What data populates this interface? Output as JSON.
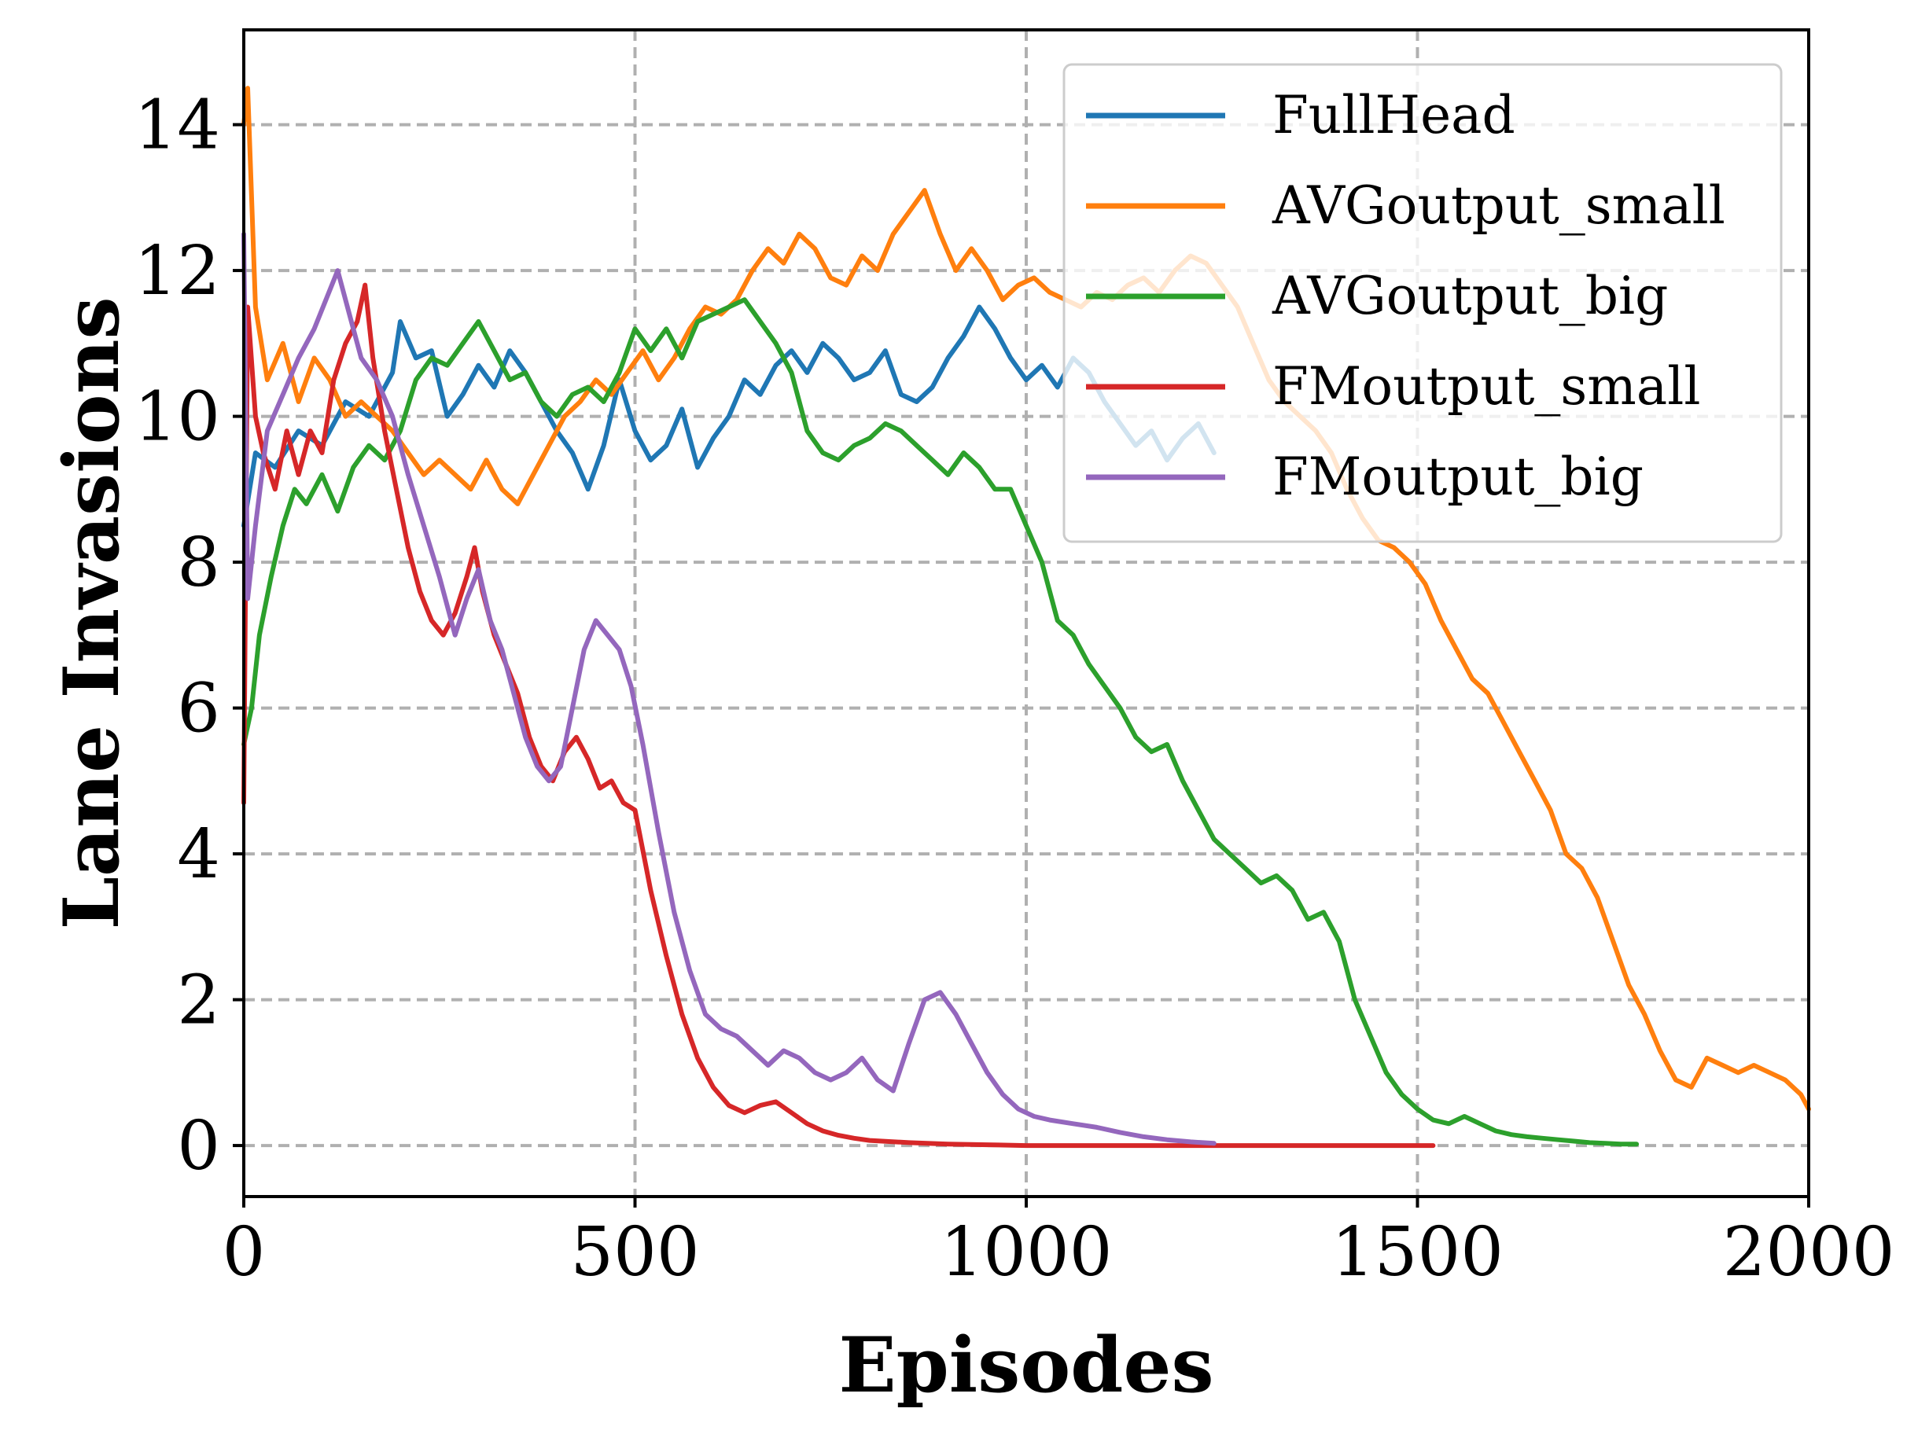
{
  "chart_data": {
    "type": "line",
    "xlabel": "Episodes",
    "ylabel": "Lane Invasions",
    "xlim": [
      0,
      2000
    ],
    "ylim": [
      -0.7,
      15.3
    ],
    "xticks": [
      0,
      500,
      1000,
      1500,
      2000
    ],
    "xtick_labels": [
      "0",
      "500",
      "1000",
      "1500",
      "2000"
    ],
    "yticks": [
      0,
      2,
      4,
      6,
      8,
      10,
      12,
      14
    ],
    "ytick_labels": [
      "0",
      "2",
      "4",
      "6",
      "8",
      "10",
      "12",
      "14"
    ],
    "grid": true,
    "legend_position": "top-right",
    "series": [
      {
        "name": "FullHead",
        "color": "#1f77b4",
        "x": [
          0,
          15,
          40,
          70,
          100,
          130,
          160,
          190,
          200,
          220,
          240,
          260,
          280,
          300,
          320,
          340,
          360,
          380,
          400,
          420,
          440,
          460,
          480,
          500,
          520,
          540,
          560,
          580,
          600,
          620,
          640,
          660,
          680,
          700,
          720,
          740,
          760,
          780,
          800,
          820,
          840,
          860,
          880,
          900,
          920,
          940,
          960,
          980,
          1000,
          1020,
          1040,
          1060,
          1080,
          1100,
          1120,
          1140,
          1160,
          1180,
          1200,
          1220,
          1240
        ],
        "y": [
          8.5,
          9.5,
          9.3,
          9.8,
          9.6,
          10.2,
          10.0,
          10.6,
          11.3,
          10.8,
          10.9,
          10.0,
          10.3,
          10.7,
          10.4,
          10.9,
          10.6,
          10.2,
          9.8,
          9.5,
          9.0,
          9.6,
          10.5,
          9.8,
          9.4,
          9.6,
          10.1,
          9.3,
          9.7,
          10.0,
          10.5,
          10.3,
          10.7,
          10.9,
          10.6,
          11.0,
          10.8,
          10.5,
          10.6,
          10.9,
          10.3,
          10.2,
          10.4,
          10.8,
          11.1,
          11.5,
          11.2,
          10.8,
          10.5,
          10.7,
          10.4,
          10.8,
          10.6,
          10.2,
          9.9,
          9.6,
          9.8,
          9.4,
          9.7,
          9.9,
          9.5
        ]
      },
      {
        "name": "AVGoutput_small",
        "color": "#ff7f0e",
        "x": [
          0,
          5,
          15,
          30,
          50,
          70,
          90,
          110,
          130,
          150,
          170,
          190,
          210,
          230,
          250,
          270,
          290,
          310,
          330,
          350,
          370,
          390,
          410,
          430,
          450,
          470,
          490,
          510,
          530,
          550,
          570,
          590,
          610,
          630,
          650,
          670,
          690,
          710,
          730,
          750,
          770,
          790,
          810,
          830,
          850,
          870,
          890,
          910,
          930,
          950,
          970,
          990,
          1010,
          1030,
          1050,
          1070,
          1090,
          1110,
          1130,
          1150,
          1170,
          1190,
          1210,
          1230,
          1250,
          1270,
          1290,
          1310,
          1330,
          1350,
          1370,
          1390,
          1410,
          1430,
          1450,
          1470,
          1490,
          1510,
          1530,
          1550,
          1570,
          1590,
          1610,
          1630,
          1650,
          1670,
          1690,
          1710,
          1730,
          1750,
          1770,
          1790,
          1810,
          1830,
          1850,
          1870,
          1890,
          1910,
          1930,
          1950,
          1970,
          1990,
          2000
        ],
        "y": [
          14.0,
          14.5,
          11.5,
          10.5,
          11.0,
          10.2,
          10.8,
          10.5,
          10.0,
          10.2,
          10.0,
          9.8,
          9.5,
          9.2,
          9.4,
          9.2,
          9.0,
          9.4,
          9.0,
          8.8,
          9.2,
          9.6,
          10.0,
          10.2,
          10.5,
          10.3,
          10.6,
          10.9,
          10.5,
          10.8,
          11.2,
          11.5,
          11.4,
          11.6,
          12.0,
          12.3,
          12.1,
          12.5,
          12.3,
          11.9,
          11.8,
          12.2,
          12.0,
          12.5,
          12.8,
          13.1,
          12.5,
          12.0,
          12.3,
          12.0,
          11.6,
          11.8,
          11.9,
          11.7,
          11.6,
          11.5,
          11.7,
          11.6,
          11.8,
          11.9,
          11.7,
          12.0,
          12.2,
          12.1,
          11.8,
          11.5,
          11.0,
          10.5,
          10.2,
          10.0,
          9.8,
          9.5,
          9.0,
          8.6,
          8.3,
          8.2,
          8.0,
          7.7,
          7.2,
          6.8,
          6.4,
          6.2,
          5.8,
          5.4,
          5.0,
          4.6,
          4.0,
          3.8,
          3.4,
          2.8,
          2.2,
          1.8,
          1.3,
          0.9,
          0.8,
          1.2,
          1.1,
          1.0,
          1.1,
          1.0,
          0.9,
          0.7,
          0.5
        ]
      },
      {
        "name": "AVGoutput_big",
        "color": "#2ca02c",
        "x": [
          0,
          10,
          20,
          35,
          50,
          65,
          80,
          100,
          120,
          140,
          160,
          180,
          200,
          220,
          240,
          260,
          280,
          300,
          320,
          340,
          360,
          380,
          400,
          420,
          440,
          460,
          480,
          500,
          520,
          540,
          560,
          580,
          600,
          620,
          640,
          660,
          680,
          700,
          720,
          740,
          760,
          780,
          800,
          820,
          840,
          860,
          880,
          900,
          920,
          940,
          960,
          980,
          1000,
          1020,
          1040,
          1060,
          1080,
          1100,
          1120,
          1140,
          1160,
          1180,
          1200,
          1220,
          1240,
          1260,
          1280,
          1300,
          1320,
          1340,
          1360,
          1380,
          1400,
          1420,
          1440,
          1460,
          1480,
          1500,
          1520,
          1540,
          1560,
          1580,
          1600,
          1620,
          1640,
          1660,
          1680,
          1700,
          1720,
          1740,
          1760,
          1780
        ],
        "y": [
          5.5,
          6.0,
          7.0,
          7.8,
          8.5,
          9.0,
          8.8,
          9.2,
          8.7,
          9.3,
          9.6,
          9.4,
          9.8,
          10.5,
          10.8,
          10.7,
          11.0,
          11.3,
          10.9,
          10.5,
          10.6,
          10.2,
          10.0,
          10.3,
          10.4,
          10.2,
          10.6,
          11.2,
          10.9,
          11.2,
          10.8,
          11.3,
          11.4,
          11.5,
          11.6,
          11.3,
          11.0,
          10.6,
          9.8,
          9.5,
          9.4,
          9.6,
          9.7,
          9.9,
          9.8,
          9.6,
          9.4,
          9.2,
          9.5,
          9.3,
          9.0,
          9.0,
          8.5,
          8.0,
          7.2,
          7.0,
          6.6,
          6.3,
          6.0,
          5.6,
          5.4,
          5.5,
          5.0,
          4.6,
          4.2,
          4.0,
          3.8,
          3.6,
          3.7,
          3.5,
          3.1,
          3.2,
          2.8,
          2.0,
          1.5,
          1.0,
          0.7,
          0.5,
          0.35,
          0.3,
          0.4,
          0.3,
          0.2,
          0.15,
          0.12,
          0.1,
          0.08,
          0.06,
          0.04,
          0.03,
          0.02,
          0.02
        ]
      },
      {
        "name": "FMoutput_small",
        "color": "#d62728",
        "x": [
          0,
          5,
          15,
          25,
          40,
          55,
          70,
          85,
          100,
          115,
          130,
          145,
          155,
          165,
          180,
          195,
          210,
          225,
          240,
          255,
          270,
          285,
          295,
          305,
          320,
          335,
          350,
          365,
          380,
          395,
          410,
          425,
          440,
          455,
          470,
          485,
          500,
          520,
          540,
          560,
          580,
          600,
          620,
          640,
          660,
          680,
          700,
          720,
          740,
          760,
          780,
          800,
          850,
          900,
          950,
          1000,
          1100,
          1200,
          1300,
          1400,
          1520
        ],
        "y": [
          4.7,
          11.5,
          10.0,
          9.5,
          9.0,
          9.8,
          9.2,
          9.8,
          9.5,
          10.5,
          11.0,
          11.3,
          11.8,
          10.8,
          9.8,
          9.0,
          8.2,
          7.6,
          7.2,
          7.0,
          7.3,
          7.8,
          8.2,
          7.6,
          7.0,
          6.6,
          6.2,
          5.6,
          5.2,
          5.0,
          5.4,
          5.6,
          5.3,
          4.9,
          5.0,
          4.7,
          4.6,
          3.5,
          2.6,
          1.8,
          1.2,
          0.8,
          0.55,
          0.45,
          0.55,
          0.6,
          0.45,
          0.3,
          0.2,
          0.14,
          0.1,
          0.07,
          0.04,
          0.02,
          0.01,
          0.0,
          0.0,
          0.0,
          0.0,
          0.0,
          0.0
        ]
      },
      {
        "name": "FMoutput_big",
        "color": "#9467bd",
        "x": [
          0,
          5,
          15,
          30,
          50,
          70,
          90,
          105,
          120,
          135,
          150,
          170,
          190,
          210,
          230,
          250,
          270,
          285,
          300,
          315,
          330,
          345,
          360,
          375,
          390,
          405,
          420,
          435,
          450,
          465,
          480,
          495,
          510,
          530,
          550,
          570,
          590,
          610,
          630,
          650,
          670,
          690,
          710,
          730,
          750,
          770,
          790,
          810,
          830,
          850,
          870,
          890,
          910,
          930,
          950,
          970,
          990,
          1010,
          1030,
          1060,
          1090,
          1120,
          1150,
          1180,
          1210,
          1240
        ],
        "y": [
          12.5,
          7.5,
          8.5,
          9.8,
          10.3,
          10.8,
          11.2,
          11.6,
          12.0,
          11.4,
          10.8,
          10.5,
          10.0,
          9.2,
          8.5,
          7.8,
          7.0,
          7.5,
          7.9,
          7.2,
          6.8,
          6.2,
          5.6,
          5.2,
          5.0,
          5.2,
          6.0,
          6.8,
          7.2,
          7.0,
          6.8,
          6.3,
          5.5,
          4.3,
          3.2,
          2.4,
          1.8,
          1.6,
          1.5,
          1.3,
          1.1,
          1.3,
          1.2,
          1.0,
          0.9,
          1.0,
          1.2,
          0.9,
          0.75,
          1.4,
          2.0,
          2.1,
          1.8,
          1.4,
          1.0,
          0.7,
          0.5,
          0.4,
          0.35,
          0.3,
          0.25,
          0.18,
          0.12,
          0.08,
          0.05,
          0.03
        ]
      }
    ]
  }
}
